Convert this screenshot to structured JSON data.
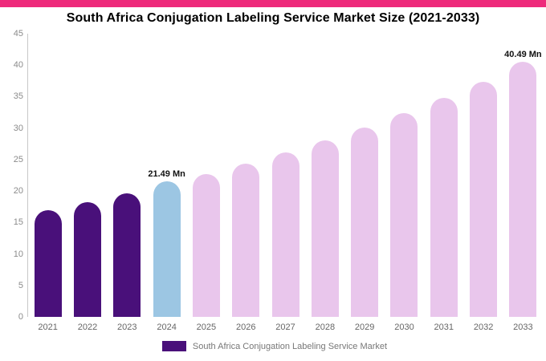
{
  "header": {
    "accent_color": "#EE2A7B",
    "title": "South Africa Conjugation Labeling Service Market Size (2021-2033)"
  },
  "chart_data": {
    "type": "bar",
    "title": "South Africa Conjugation Labeling Service Market Size (2021-2033)",
    "categories": [
      "2021",
      "2022",
      "2023",
      "2024",
      "2025",
      "2026",
      "2027",
      "2028",
      "2029",
      "2030",
      "2031",
      "2032",
      "2033"
    ],
    "values": [
      16.9,
      18.2,
      19.6,
      21.49,
      22.7,
      24.3,
      26.1,
      28.0,
      30.1,
      32.4,
      34.8,
      37.3,
      40.49
    ],
    "unit": "Mn",
    "xlabel": "",
    "ylabel": "",
    "ylim": [
      0,
      45
    ],
    "yticks": [
      0,
      5,
      10,
      15,
      20,
      25,
      30,
      35,
      40,
      45
    ],
    "grid": false,
    "bar_colors": {
      "historical": "#49107A",
      "current": "#9CC6E3",
      "forecast": "#E9C6EC"
    },
    "segments": {
      "historical_indices": [
        0,
        1,
        2
      ],
      "current_index": 3,
      "forecast_start_index": 4
    },
    "annotations": [
      {
        "category": "2024",
        "text": "21.49 Mn"
      },
      {
        "category": "2033",
        "text": "40.49 Mn"
      }
    ],
    "legend_position": "bottom",
    "legend": [
      {
        "label": "South Africa Conjugation Labeling Service Market",
        "color": "#49107A"
      }
    ]
  }
}
